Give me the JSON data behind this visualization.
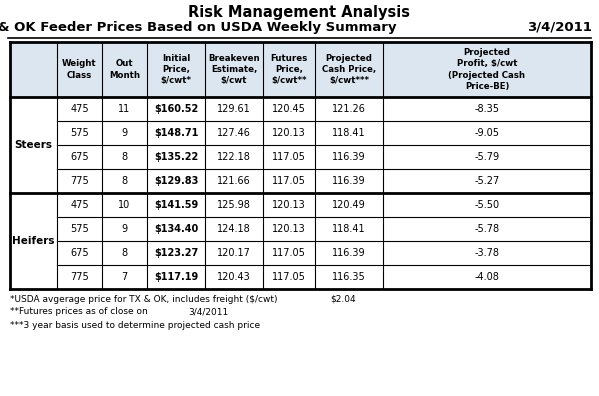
{
  "title1": "Risk Management Analysis",
  "title2": "TX & OK Feeder Prices Based on USDA Weekly Summary",
  "date": "3/4/2011",
  "col_headers": [
    "Weight\nClass",
    "Out\nMonth",
    "Initial\nPrice,\n$/cwt*",
    "Breakeven\nEstimate,\n$/cwt",
    "Futures\nPrice,\n$/cwt**",
    "Projected\nCash Price,\n$/cwt***",
    "Projected\nProfit, $/cwt\n(Projected Cash\nPrice-BE)"
  ],
  "data_rows": [
    [
      "475",
      "11",
      "$160.52",
      "129.61",
      "120.45",
      "121.26",
      "-8.35"
    ],
    [
      "575",
      "9",
      "$148.71",
      "127.46",
      "120.13",
      "118.41",
      "-9.05"
    ],
    [
      "675",
      "8",
      "$135.22",
      "122.18",
      "117.05",
      "116.39",
      "-5.79"
    ],
    [
      "775",
      "8",
      "$129.83",
      "121.66",
      "117.05",
      "116.39",
      "-5.27"
    ],
    [
      "475",
      "10",
      "$141.59",
      "125.98",
      "120.13",
      "120.49",
      "-5.50"
    ],
    [
      "575",
      "9",
      "$134.40",
      "124.18",
      "120.13",
      "118.41",
      "-5.78"
    ],
    [
      "675",
      "8",
      "$123.27",
      "120.17",
      "117.05",
      "116.39",
      "-3.78"
    ],
    [
      "775",
      "7",
      "$117.19",
      "120.43",
      "117.05",
      "116.35",
      "-4.08"
    ]
  ],
  "steers_label": "Steers",
  "heifers_label": "Heifers",
  "footnote1": "*USDA avgerage price for TX & OK, includes freight ($/cwt)",
  "footnote1_val": "$2.04",
  "footnote2": "**Futures prices as of close on",
  "footnote2_val": "3/4/2011",
  "footnote3": "***3 year basis used to determine projected cash price",
  "bg_color": "#ffffff",
  "header_bg": "#dce6f1",
  "lw_thick": 2.0,
  "lw_thin": 0.8
}
